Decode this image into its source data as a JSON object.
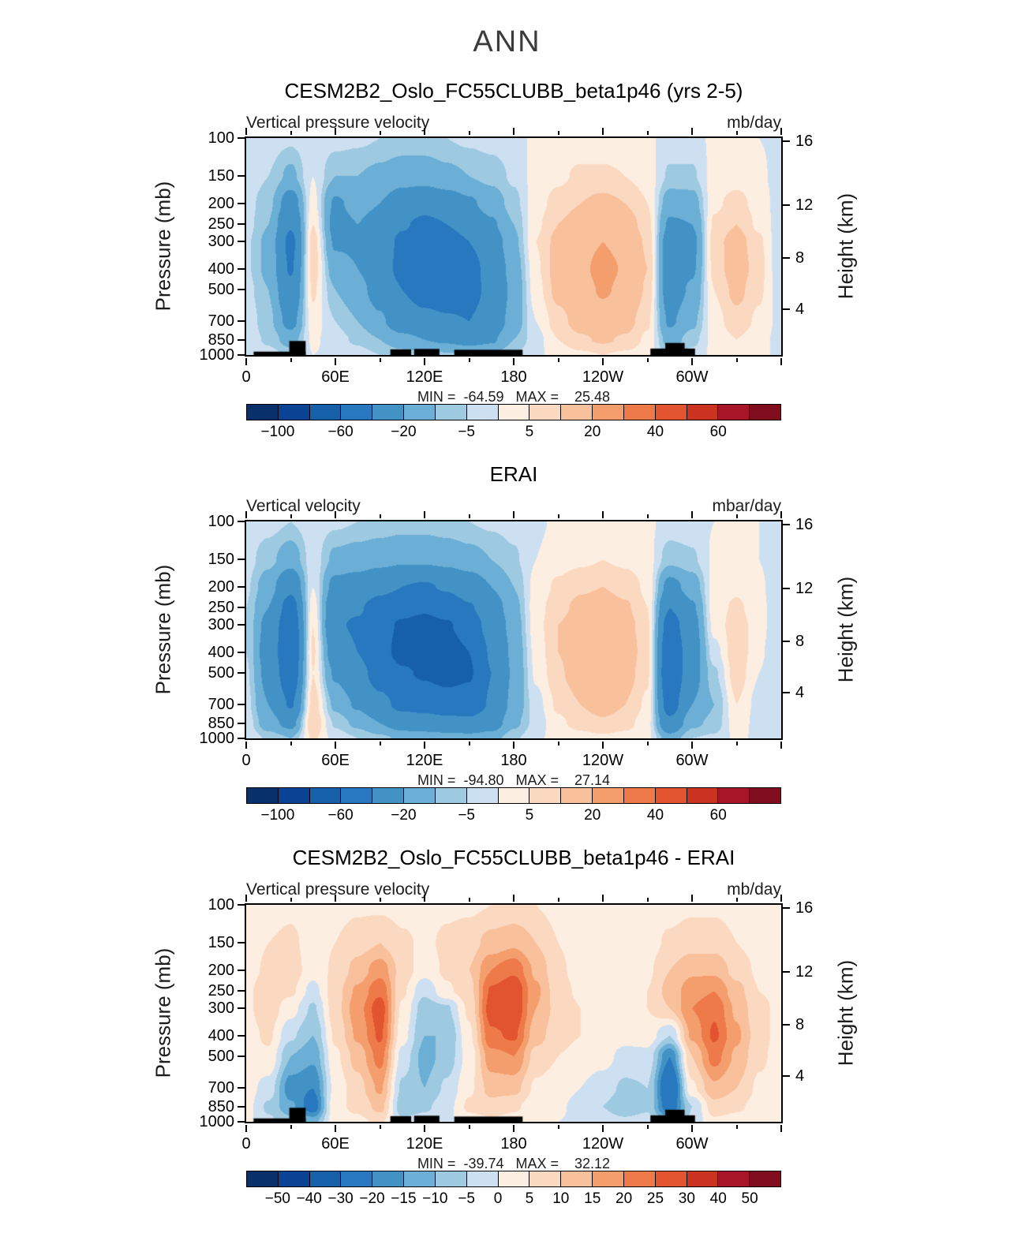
{
  "page_title": "ANN",
  "axes": {
    "pressure_label": "Pressure (mb)",
    "height_label": "Height (km)",
    "pressure_ticks": [
      100,
      150,
      200,
      250,
      300,
      400,
      500,
      700,
      850,
      1000
    ],
    "height_ticks": [
      {
        "km": 16,
        "p": 103
      },
      {
        "km": 12,
        "p": 203
      },
      {
        "km": 8,
        "p": 356
      },
      {
        "km": 4,
        "p": 616
      }
    ],
    "x_ticks": [
      {
        "lon": 0,
        "label": "0"
      },
      {
        "lon": 60,
        "label": "60E"
      },
      {
        "lon": 120,
        "label": "120E"
      },
      {
        "lon": 180,
        "label": "180"
      },
      {
        "lon": 240,
        "label": "120W"
      },
      {
        "lon": 300,
        "label": "60W"
      },
      {
        "lon": 360,
        "label": ""
      }
    ],
    "x_minor_step": 30
  },
  "palette": [
    "#08306b",
    "#0a4393",
    "#1660aa",
    "#2878bf",
    "#4292c6",
    "#6baed6",
    "#9ecae1",
    "#cde0f1",
    "#fdeee2",
    "#fbd9c0",
    "#f9c09c",
    "#f49e6e",
    "#ee7a4a",
    "#e2532f",
    "#cb3220",
    "#a81529",
    "#7f0d1d"
  ],
  "panels": [
    {
      "title": "CESM2B2_Oslo_FC55CLUBB_beta1p46 (yrs 2-5)",
      "field_label": "Vertical pressure velocity",
      "units_label": "mb/day",
      "minmax": "MIN =  -64.59   MAX =    25.48"
    },
    {
      "title": "ERAI",
      "field_label": "Vertical velocity",
      "units_label": "mbar/day",
      "minmax": "MIN =  -94.80   MAX =    27.14"
    },
    {
      "title": "CESM2B2_Oslo_FC55CLUBB_beta1p46 - ERAI",
      "field_label": "Vertical pressure velocity",
      "units_label": "mb/day",
      "minmax": "MIN =  -39.74   MAX =    32.12"
    }
  ],
  "chart_data": [
    {
      "type": "heatmap",
      "title": "CESM2B2_Oslo_FC55CLUBB_beta1p46 (yrs 2-5)",
      "variable": "Vertical pressure velocity",
      "units": "mb/day",
      "min": -64.59,
      "max": 25.48,
      "x_axis": {
        "label": "longitude",
        "range": [
          0,
          360
        ],
        "tick_labels": [
          "0",
          "60E",
          "120E",
          "180",
          "120W",
          "60W"
        ]
      },
      "y_axis": {
        "label": "Pressure (mb)",
        "scale": "log",
        "range": [
          100,
          1000
        ]
      },
      "y2_axis": {
        "label": "Height (km)",
        "ticks": [
          16,
          12,
          8,
          4
        ]
      },
      "contour_levels": [
        -100,
        -80,
        -60,
        -40,
        -20,
        -10,
        -5,
        0,
        5,
        10,
        20,
        30,
        40,
        50,
        60,
        80
      ],
      "cbar_ticks": [
        -100,
        -60,
        -20,
        -5,
        5,
        20,
        40,
        60
      ],
      "lons": [
        0,
        15,
        30,
        45,
        60,
        75,
        90,
        105,
        120,
        135,
        150,
        165,
        180,
        195,
        210,
        225,
        240,
        255,
        270,
        285,
        300,
        315,
        330,
        345,
        360
      ],
      "pressure_levels": [
        100,
        150,
        200,
        250,
        300,
        400,
        500,
        700,
        850,
        1000
      ],
      "values": [
        [
          -1,
          -2,
          -4,
          -1,
          -3,
          -4,
          -5,
          -6,
          -6,
          -5,
          -4,
          -3,
          -2,
          1,
          2,
          2,
          2,
          2,
          1,
          -2,
          -2,
          1,
          1,
          0,
          -1
        ],
        [
          -2,
          -5,
          -12,
          0,
          -10,
          -10,
          -12,
          -15,
          -15,
          -12,
          -10,
          -8,
          -4,
          2,
          4,
          6,
          6,
          5,
          3,
          -6,
          -6,
          2,
          3,
          1,
          -2
        ],
        [
          -3,
          -8,
          -28,
          2,
          -22,
          -16,
          -20,
          -28,
          -32,
          -28,
          -22,
          -15,
          -7,
          3,
          7,
          10,
          12,
          10,
          5,
          -15,
          -14,
          4,
          7,
          3,
          -3
        ],
        [
          -3,
          -10,
          -38,
          5,
          -25,
          -20,
          -26,
          -38,
          -45,
          -40,
          -32,
          -22,
          -10,
          4,
          10,
          14,
          16,
          14,
          7,
          -22,
          -20,
          6,
          10,
          4,
          -3
        ],
        [
          -4,
          -12,
          -45,
          8,
          -22,
          -22,
          -30,
          -44,
          -50,
          -50,
          -40,
          -28,
          -12,
          5,
          12,
          17,
          20,
          17,
          9,
          -28,
          -24,
          8,
          13,
          6,
          -4
        ],
        [
          -4,
          -12,
          -42,
          8,
          -15,
          -20,
          -30,
          -46,
          -52,
          -55,
          -48,
          -32,
          -15,
          4,
          13,
          18,
          23,
          19,
          10,
          -30,
          -22,
          7,
          14,
          7,
          -4
        ],
        [
          -3,
          -10,
          -35,
          6,
          -10,
          -16,
          -26,
          -40,
          -48,
          -50,
          -48,
          -34,
          -17,
          3,
          12,
          17,
          21,
          18,
          9,
          -28,
          -18,
          5,
          12,
          6,
          -3
        ],
        [
          -2,
          -8,
          -25,
          3,
          -5,
          -10,
          -18,
          -30,
          -35,
          -38,
          -40,
          -30,
          -15,
          0,
          8,
          13,
          16,
          13,
          6,
          -22,
          -12,
          3,
          8,
          4,
          -2
        ],
        [
          -2,
          -6,
          -14,
          1,
          -3,
          -6,
          -10,
          -16,
          -20,
          -22,
          -25,
          -22,
          -10,
          -2,
          5,
          9,
          11,
          9,
          4,
          -14,
          -7,
          2,
          5,
          2,
          -2
        ],
        [
          -1,
          -3,
          -6,
          0,
          -1,
          -3,
          -5,
          -7,
          -8,
          -9,
          -10,
          -9,
          -5,
          -1,
          2,
          4,
          5,
          4,
          2,
          -6,
          -3,
          1,
          2,
          1,
          -1
        ]
      ],
      "topography_mask": [
        [
          5,
          40,
          965
        ],
        [
          29,
          40,
          862
        ],
        [
          97,
          111,
          942
        ],
        [
          113,
          130,
          938
        ],
        [
          140,
          186,
          946
        ],
        [
          272,
          302,
          934
        ],
        [
          282,
          295,
          880
        ]
      ]
    },
    {
      "type": "heatmap",
      "title": "ERAI",
      "variable": "Vertical velocity",
      "units": "mbar/day",
      "min": -94.8,
      "max": 27.14,
      "x_axis": {
        "label": "longitude",
        "range": [
          0,
          360
        ],
        "tick_labels": [
          "0",
          "60E",
          "120E",
          "180",
          "120W",
          "60W"
        ]
      },
      "y_axis": {
        "label": "Pressure (mb)",
        "scale": "log",
        "range": [
          100,
          1000
        ]
      },
      "y2_axis": {
        "label": "Height (km)",
        "ticks": [
          16,
          12,
          8,
          4
        ]
      },
      "contour_levels": [
        -100,
        -80,
        -60,
        -40,
        -20,
        -10,
        -5,
        0,
        5,
        10,
        20,
        30,
        40,
        50,
        60,
        80
      ],
      "cbar_ticks": [
        -100,
        -60,
        -20,
        -5,
        5,
        20,
        40,
        60
      ],
      "lons": [
        0,
        15,
        30,
        45,
        60,
        75,
        90,
        105,
        120,
        135,
        150,
        165,
        180,
        195,
        210,
        225,
        240,
        255,
        270,
        285,
        300,
        315,
        330,
        345,
        360
      ],
      "pressure_levels": [
        100,
        150,
        200,
        250,
        300,
        400,
        500,
        700,
        850,
        1000
      ],
      "values": [
        [
          -2,
          -3,
          -5,
          -2,
          -4,
          -5,
          -6,
          -7,
          -7,
          -6,
          -5,
          -4,
          -3,
          -1,
          1,
          2,
          2,
          2,
          1,
          -2,
          -2,
          0,
          1,
          0,
          -2
        ],
        [
          -3,
          -8,
          -15,
          -2,
          -12,
          -14,
          -16,
          -18,
          -18,
          -16,
          -13,
          -10,
          -6,
          0,
          3,
          4,
          5,
          4,
          2,
          -8,
          -6,
          1,
          2,
          0,
          -3
        ],
        [
          -4,
          -15,
          -35,
          0,
          -25,
          -28,
          -35,
          -40,
          -42,
          -38,
          -30,
          -20,
          -10,
          2,
          6,
          9,
          10,
          8,
          4,
          -25,
          -15,
          2,
          4,
          1,
          -4
        ],
        [
          -5,
          -20,
          -50,
          3,
          -35,
          -38,
          -48,
          -55,
          -58,
          -52,
          -42,
          -28,
          -13,
          3,
          8,
          12,
          14,
          11,
          5,
          -40,
          -22,
          3,
          6,
          2,
          -5
        ],
        [
          -5,
          -25,
          -58,
          5,
          -38,
          -42,
          -55,
          -62,
          -65,
          -62,
          -50,
          -33,
          -15,
          3,
          10,
          14,
          16,
          13,
          6,
          -50,
          -26,
          2,
          8,
          2,
          -5
        ],
        [
          -5,
          -28,
          -60,
          6,
          -30,
          -40,
          -55,
          -65,
          -68,
          -70,
          -60,
          -38,
          -17,
          2,
          10,
          15,
          18,
          14,
          7,
          -58,
          -28,
          -2,
          9,
          1,
          -5
        ],
        [
          -4,
          -25,
          -55,
          5,
          -22,
          -34,
          -48,
          -58,
          -62,
          -66,
          -62,
          -40,
          -18,
          1,
          9,
          14,
          17,
          13,
          6,
          -60,
          -26,
          -6,
          8,
          0,
          -4
        ],
        [
          -3,
          -20,
          -42,
          8,
          -12,
          -22,
          -35,
          -45,
          -48,
          -52,
          -52,
          -38,
          -16,
          -2,
          6,
          10,
          13,
          10,
          4,
          -50,
          -20,
          -10,
          5,
          -2,
          -3
        ],
        [
          -2,
          -15,
          -25,
          10,
          -6,
          -12,
          -20,
          -28,
          -30,
          -33,
          -35,
          -28,
          -12,
          -3,
          4,
          7,
          9,
          7,
          2,
          -35,
          -12,
          -8,
          3,
          -2,
          -2
        ],
        [
          -1,
          -6,
          -10,
          6,
          -2,
          -5,
          -8,
          -12,
          -13,
          -14,
          -15,
          -13,
          -6,
          -1,
          2,
          3,
          4,
          3,
          1,
          -15,
          -5,
          -4,
          1,
          -1,
          -1
        ]
      ],
      "topography_mask": []
    },
    {
      "type": "heatmap",
      "title": "CESM2B2_Oslo_FC55CLUBB_beta1p46 - ERAI",
      "variable": "Vertical pressure velocity difference",
      "units": "mb/day",
      "min": -39.74,
      "max": 32.12,
      "x_axis": {
        "label": "longitude",
        "range": [
          0,
          360
        ],
        "tick_labels": [
          "0",
          "60E",
          "120E",
          "180",
          "120W",
          "60W"
        ]
      },
      "y_axis": {
        "label": "Pressure (mb)",
        "scale": "log",
        "range": [
          100,
          1000
        ]
      },
      "y2_axis": {
        "label": "Height (km)",
        "ticks": [
          16,
          12,
          8,
          4
        ]
      },
      "contour_levels": [
        -50,
        -40,
        -30,
        -20,
        -15,
        -10,
        -5,
        0,
        5,
        10,
        15,
        20,
        25,
        30,
        40,
        50
      ],
      "cbar_ticks": [
        -50,
        -40,
        -30,
        -20,
        -15,
        -10,
        -5,
        0,
        5,
        10,
        15,
        20,
        25,
        30,
        40,
        50
      ],
      "lons": [
        0,
        15,
        30,
        45,
        60,
        75,
        90,
        105,
        120,
        135,
        150,
        165,
        180,
        195,
        210,
        225,
        240,
        255,
        270,
        285,
        300,
        315,
        330,
        345,
        360
      ],
      "pressure_levels": [
        100,
        150,
        200,
        250,
        300,
        400,
        500,
        700,
        850,
        1000
      ],
      "values": [
        [
          2,
          3,
          4,
          2,
          3,
          4,
          4,
          3,
          3,
          4,
          4,
          5,
          6,
          5,
          3,
          2,
          2,
          2,
          2,
          3,
          4,
          4,
          3,
          2,
          2
        ],
        [
          3,
          5,
          6,
          3,
          5,
          8,
          10,
          6,
          4,
          6,
          8,
          12,
          14,
          10,
          5,
          3,
          2,
          2,
          3,
          6,
          8,
          8,
          5,
          3,
          3
        ],
        [
          3,
          6,
          8,
          2,
          6,
          12,
          18,
          8,
          2,
          6,
          10,
          20,
          24,
          14,
          6,
          3,
          2,
          2,
          4,
          10,
          14,
          14,
          8,
          4,
          3
        ],
        [
          4,
          8,
          6,
          -2,
          8,
          16,
          24,
          6,
          -4,
          4,
          8,
          26,
          30,
          16,
          7,
          4,
          3,
          3,
          5,
          12,
          18,
          20,
          12,
          5,
          4
        ],
        [
          4,
          8,
          2,
          -6,
          8,
          18,
          28,
          4,
          -8,
          -6,
          6,
          28,
          30,
          15,
          8,
          5,
          4,
          3,
          5,
          10,
          20,
          24,
          14,
          6,
          4
        ],
        [
          3,
          6,
          -4,
          -10,
          6,
          16,
          26,
          2,
          -10,
          -10,
          4,
          24,
          26,
          12,
          7,
          5,
          4,
          2,
          3,
          -5,
          16,
          26,
          16,
          7,
          3
        ],
        [
          3,
          4,
          -10,
          -14,
          4,
          12,
          22,
          -2,
          -12,
          -8,
          2,
          18,
          20,
          8,
          5,
          3,
          2,
          -2,
          -2,
          -20,
          10,
          22,
          14,
          6,
          3
        ],
        [
          2,
          -2,
          -18,
          -20,
          2,
          8,
          16,
          -6,
          -10,
          -4,
          4,
          12,
          12,
          4,
          2,
          0,
          -3,
          -6,
          -5,
          -30,
          4,
          14,
          10,
          4,
          2
        ],
        [
          2,
          -6,
          -14,
          -24,
          4,
          6,
          12,
          -8,
          -6,
          -2,
          6,
          8,
          6,
          2,
          1,
          -2,
          -5,
          -8,
          -6,
          -25,
          -5,
          8,
          6,
          3,
          2
        ],
        [
          1,
          -4,
          -8,
          -12,
          3,
          4,
          6,
          -4,
          -3,
          -1,
          3,
          4,
          3,
          1,
          0,
          -1,
          -3,
          -4,
          -3,
          -12,
          -4,
          4,
          3,
          2,
          1
        ]
      ],
      "topography_mask": [
        [
          5,
          40,
          965
        ],
        [
          29,
          40,
          862
        ],
        [
          97,
          111,
          942
        ],
        [
          113,
          130,
          938
        ],
        [
          140,
          186,
          946
        ],
        [
          272,
          302,
          934
        ],
        [
          282,
          295,
          880
        ]
      ]
    }
  ]
}
